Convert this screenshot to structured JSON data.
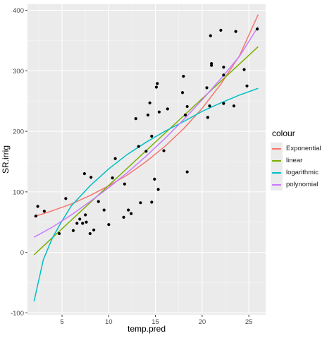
{
  "chart_data": {
    "type": "scatter",
    "xlabel": "temp.pred",
    "ylabel": "SR.irrig",
    "xlim": [
      1.3,
      26.8
    ],
    "ylim": [
      -103,
      410
    ],
    "x_ticks": [
      5,
      10,
      15,
      20,
      25
    ],
    "y_ticks": [
      -100,
      0,
      100,
      200,
      300,
      400
    ],
    "grid": true,
    "legend": {
      "title": "colour",
      "placement": "right",
      "items": [
        {
          "label": "Exponential",
          "color": "#F8766D"
        },
        {
          "label": "linear",
          "color": "#7CAE00"
        },
        {
          "label": "logarithmic",
          "color": "#00BFC4"
        },
        {
          "label": "polynomial",
          "color": "#C77CFF"
        }
      ]
    },
    "points": [
      {
        "x": 2.2,
        "y": 60
      },
      {
        "x": 2.4,
        "y": 76
      },
      {
        "x": 3.1,
        "y": 68
      },
      {
        "x": 4.7,
        "y": 31
      },
      {
        "x": 5.4,
        "y": 89
      },
      {
        "x": 6.2,
        "y": 36
      },
      {
        "x": 6.6,
        "y": 48
      },
      {
        "x": 6.9,
        "y": 55
      },
      {
        "x": 7.2,
        "y": 48
      },
      {
        "x": 7.4,
        "y": 130
      },
      {
        "x": 7.5,
        "y": 62
      },
      {
        "x": 7.6,
        "y": 50
      },
      {
        "x": 8.0,
        "y": 31
      },
      {
        "x": 8.1,
        "y": 124
      },
      {
        "x": 8.4,
        "y": 37
      },
      {
        "x": 8.9,
        "y": 84
      },
      {
        "x": 9.5,
        "y": 70
      },
      {
        "x": 10.0,
        "y": 46
      },
      {
        "x": 10.4,
        "y": 123
      },
      {
        "x": 10.7,
        "y": 155
      },
      {
        "x": 11.6,
        "y": 58
      },
      {
        "x": 11.7,
        "y": 113
      },
      {
        "x": 12.1,
        "y": 70
      },
      {
        "x": 12.4,
        "y": 64
      },
      {
        "x": 12.9,
        "y": 221
      },
      {
        "x": 13.2,
        "y": 175
      },
      {
        "x": 13.4,
        "y": 82
      },
      {
        "x": 14.0,
        "y": 167
      },
      {
        "x": 14.2,
        "y": 227
      },
      {
        "x": 14.4,
        "y": 247
      },
      {
        "x": 14.6,
        "y": 192
      },
      {
        "x": 14.6,
        "y": 83
      },
      {
        "x": 14.9,
        "y": 121
      },
      {
        "x": 15.1,
        "y": 273
      },
      {
        "x": 15.2,
        "y": 279
      },
      {
        "x": 15.3,
        "y": 104
      },
      {
        "x": 15.4,
        "y": 232
      },
      {
        "x": 15.9,
        "y": 168
      },
      {
        "x": 16.3,
        "y": 237
      },
      {
        "x": 17.9,
        "y": 264
      },
      {
        "x": 18.0,
        "y": 291
      },
      {
        "x": 18.2,
        "y": 227
      },
      {
        "x": 18.4,
        "y": 241
      },
      {
        "x": 18.4,
        "y": 133
      },
      {
        "x": 20.5,
        "y": 272
      },
      {
        "x": 20.6,
        "y": 223
      },
      {
        "x": 20.8,
        "y": 242
      },
      {
        "x": 20.9,
        "y": 358
      },
      {
        "x": 21.0,
        "y": 309
      },
      {
        "x": 21.0,
        "y": 312
      },
      {
        "x": 22.0,
        "y": 367
      },
      {
        "x": 22.3,
        "y": 306
      },
      {
        "x": 22.3,
        "y": 293
      },
      {
        "x": 22.3,
        "y": 246
      },
      {
        "x": 23.4,
        "y": 242
      },
      {
        "x": 23.6,
        "y": 365
      },
      {
        "x": 24.5,
        "y": 302
      },
      {
        "x": 24.8,
        "y": 275
      },
      {
        "x": 25.9,
        "y": 369
      }
    ],
    "series": [
      {
        "name": "Exponential",
        "color": "#F8766D",
        "x": [
          2,
          4,
          6,
          8,
          10,
          12,
          14,
          16,
          18,
          20,
          22,
          24,
          26
        ],
        "y": [
          59,
          69,
          80,
          94,
          110,
          128,
          150,
          175,
          204,
          238,
          278,
          325,
          393
        ]
      },
      {
        "name": "linear",
        "color": "#7CAE00",
        "x": [
          2,
          26
        ],
        "y": [
          -4,
          340
        ]
      },
      {
        "name": "logarithmic",
        "color": "#00BFC4",
        "x": [
          2,
          3,
          4,
          5,
          6,
          8,
          10,
          12,
          14,
          16,
          18,
          20,
          22,
          24,
          26
        ],
        "y": [
          -81,
          -12,
          25,
          52,
          77,
          110,
          138,
          162,
          182,
          200,
          216,
          233,
          247,
          260,
          271
        ]
      },
      {
        "name": "polynomial",
        "color": "#C77CFF",
        "x": [
          2,
          4,
          6,
          8,
          10,
          12,
          14,
          16,
          18,
          20,
          22,
          24,
          26
        ],
        "y": [
          25,
          42,
          62,
          84,
          107,
          132,
          159,
          188,
          219,
          252,
          287,
          324,
          373
        ]
      }
    ]
  }
}
